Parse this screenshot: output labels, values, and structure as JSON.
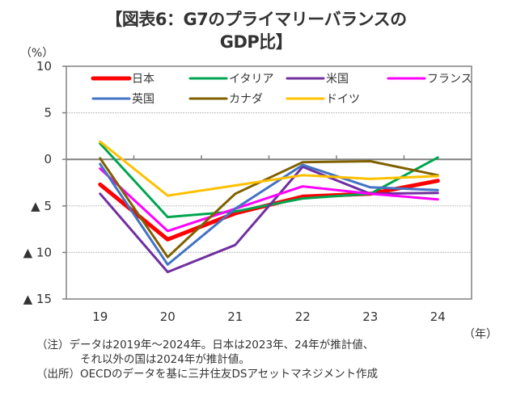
{
  "chart_data": {
    "type": "line",
    "title": "【図表6：G7のプライマリーバランスのGDP比】",
    "title_lines": [
      "【図表6：G7のプライマリーバランスの",
      "GDP比】"
    ],
    "ylabel": "（%）",
    "xlabel": "（年）",
    "ylim": [
      -15,
      10
    ],
    "yticks": [
      10,
      5,
      0,
      -5,
      -10,
      -15
    ],
    "ytick_labels": [
      "10",
      "5",
      "0",
      "▲ 5",
      "▲ 10",
      "▲ 15"
    ],
    "categories": [
      "19",
      "20",
      "21",
      "22",
      "23",
      "24"
    ],
    "grid": true,
    "legend_position": "top-inside",
    "series": [
      {
        "name": "日本",
        "color": "#ff0000",
        "width": "thick",
        "values": [
          -2.7,
          -8.6,
          -5.8,
          -4.0,
          -3.7,
          -2.3
        ]
      },
      {
        "name": "イタリア",
        "color": "#00a550",
        "width": "normal",
        "values": [
          1.7,
          -6.2,
          -5.6,
          -4.2,
          -3.7,
          0.2
        ]
      },
      {
        "name": "米国",
        "color": "#7030a0",
        "width": "normal",
        "values": [
          -3.7,
          -12.1,
          -9.2,
          -0.8,
          -3.7,
          -3.6
        ]
      },
      {
        "name": "フランス",
        "color": "#ff00ff",
        "width": "normal",
        "values": [
          -1.0,
          -7.7,
          -5.3,
          -2.9,
          -3.7,
          -4.3
        ]
      },
      {
        "name": "英国",
        "color": "#4472c4",
        "width": "normal",
        "values": [
          -0.5,
          -11.3,
          -5.3,
          -0.6,
          -3.0,
          -3.3
        ]
      },
      {
        "name": "カナダ",
        "color": "#7f6000",
        "width": "normal",
        "values": [
          0.1,
          -10.5,
          -3.7,
          -0.3,
          -0.2,
          -1.7
        ]
      },
      {
        "name": "ドイツ",
        "color": "#ffc000",
        "width": "normal",
        "values": [
          1.9,
          -3.9,
          -2.8,
          -1.7,
          -2.1,
          -1.8
        ]
      }
    ]
  },
  "notes": {
    "note_line1": "（注）データは2019年～2024年。日本は2023年、24年が推計値、",
    "note_line2": "それ以外の国は2024年が推計値。",
    "source": "（出所）OECDのデータを基に三井住友DSアセットマネジメント作成"
  }
}
